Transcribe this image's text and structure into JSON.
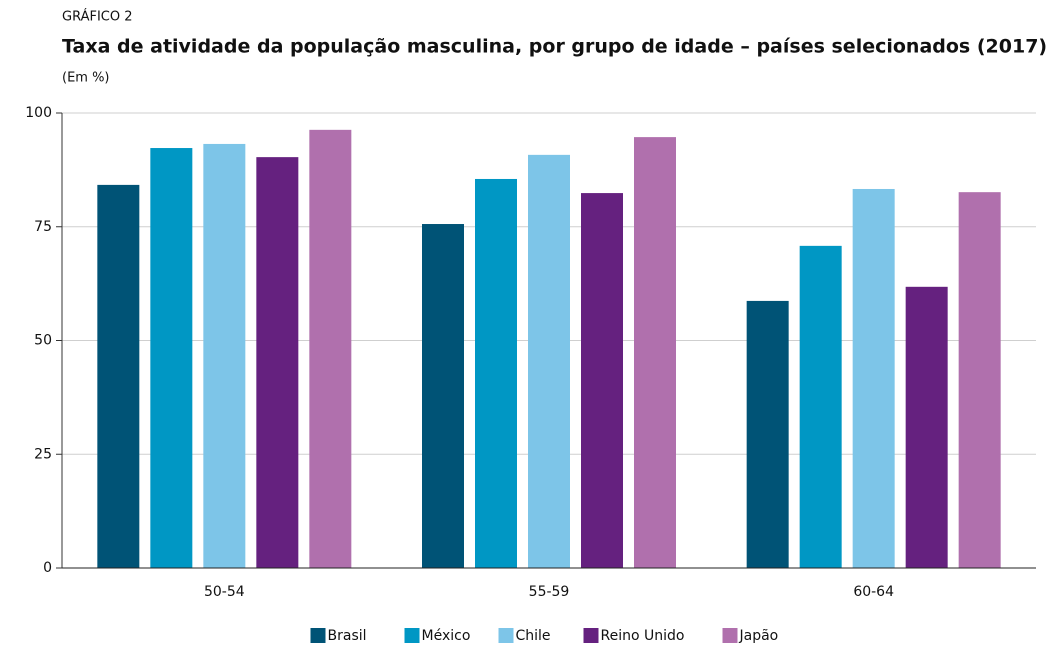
{
  "chart_data": {
    "type": "bar",
    "label": "GRÁFICO 2",
    "title": "Taxa de atividade da população masculina, por grupo de idade – países selecionados (2017)",
    "subtitle": "(Em %)",
    "categories": [
      "50-54",
      "55-59",
      "60-64"
    ],
    "series": [
      {
        "name": "Brasil",
        "color": "#005376",
        "values": [
          84.2,
          75.6,
          58.7
        ]
      },
      {
        "name": "México",
        "color": "#0097c4",
        "values": [
          92.3,
          85.5,
          70.8
        ]
      },
      {
        "name": "Chile",
        "color": "#7dc5e8",
        "values": [
          93.2,
          90.8,
          83.3
        ]
      },
      {
        "name": "Reino Unido",
        "color": "#65217f",
        "values": [
          90.3,
          82.4,
          61.8
        ]
      },
      {
        "name": "Japão",
        "color": "#b070ad",
        "values": [
          96.3,
          94.7,
          82.6
        ]
      }
    ],
    "ylim": [
      0,
      100
    ],
    "yticks": [
      0,
      25,
      50,
      75,
      100
    ],
    "grid": true,
    "legend": "bottom"
  }
}
